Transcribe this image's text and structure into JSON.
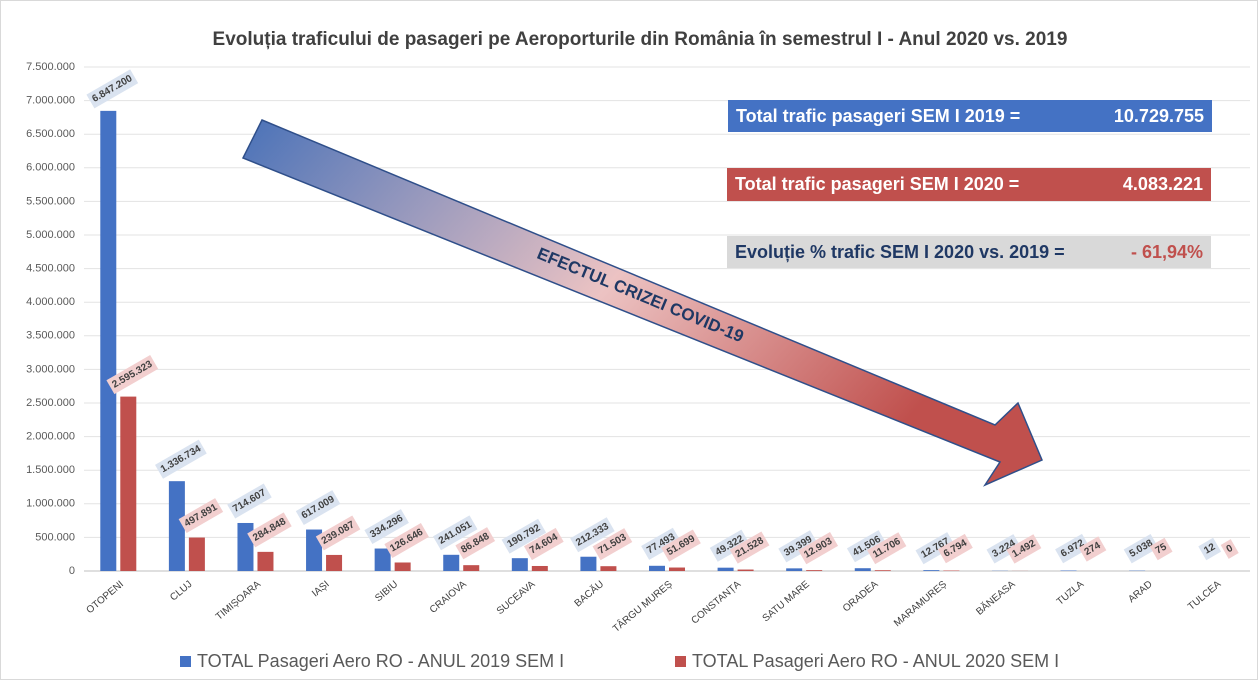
{
  "chart_data": {
    "type": "bar",
    "title": "Evoluția traficului de pasageri pe Aeroporturile din România în semestrul I - Anul 2020 vs. 2019",
    "categories": [
      "OTOPENI",
      "CLUJ",
      "TIMIȘOARA",
      "IAȘI",
      "SIBIU",
      "CRAIOVA",
      "SUCEAVA",
      "BACĂU",
      "TÂRGU MUREȘ",
      "CONSTANȚA",
      "SATU MARE",
      "ORADEA",
      "MARAMUREȘ",
      "BĂNEASA",
      "TUZLA",
      "ARAD",
      "TULCEA"
    ],
    "series": [
      {
        "name": "TOTAL Pasageri Aero RO - ANUL 2019 SEM I",
        "color": "#4472c4",
        "values": [
          6847200,
          1336734,
          714607,
          617009,
          334296,
          241051,
          190792,
          212333,
          77493,
          49322,
          39399,
          41506,
          12767,
          3224,
          6972,
          5038,
          12
        ],
        "value_labels": [
          "6.847.200",
          "1.336.734",
          "714.607",
          "617.009",
          "334.296",
          "241.051",
          "190.792",
          "212.333",
          "77.493",
          "49.322",
          "39.399",
          "41.506",
          "12.767",
          "3.224",
          "6.972",
          "5.038",
          "12"
        ]
      },
      {
        "name": "TOTAL Pasageri Aero RO - ANUL 2020 SEM I",
        "color": "#c0504d",
        "values": [
          2595323,
          497891,
          284848,
          239087,
          126646,
          86848,
          74604,
          71503,
          51699,
          21528,
          12903,
          11706,
          6794,
          1492,
          274,
          75,
          0
        ],
        "value_labels": [
          "2.595.323",
          "497.891",
          "284.848",
          "239.087",
          "126.646",
          "86.848",
          "74.604",
          "71.503",
          "51.699",
          "21.528",
          "12.903",
          "11.706",
          "6.794",
          "1.492",
          "274",
          "75",
          "0"
        ]
      }
    ],
    "ylim": [
      0,
      7500000
    ],
    "yticks": [
      0,
      {
        "value": 500000,
        "label": "500.000"
      },
      {
        "value": 1000000,
        "label": "1.000.000"
      },
      {
        "value": 1500000,
        "label": "1.500.000"
      },
      {
        "value": 2000000,
        "label": "2.000.000"
      },
      {
        "value": 2500000,
        "label": "2.500.000"
      },
      {
        "value": 3000000,
        "label": "3.000.000"
      },
      {
        "value": 3500000,
        "label": "3.500.000"
      },
      {
        "value": 4000000,
        "label": "4.000.000"
      },
      {
        "value": 4500000,
        "label": "4.500.000"
      },
      {
        "value": 5000000,
        "label": "5.000.000"
      },
      {
        "value": 5500000,
        "label": "5.500.000"
      },
      {
        "value": 6000000,
        "label": "6.000.000"
      },
      {
        "value": 6500000,
        "label": "6.500.000"
      },
      {
        "value": 7000000,
        "label": "7.000.000"
      },
      {
        "value": 7500000,
        "label": "7.500.000"
      }
    ],
    "grid": true,
    "legend": "bottom",
    "annotations": [
      "EFECTUL CRIZEI COVID-19",
      "Total trafic pasageri SEM I 2019 =",
      "10.729.755",
      "Total trafic pasageri SEM I 2020 =",
      "4.083.221",
      "Evoluție % trafic SEM I 2020 vs. 2019 =",
      "- 61,94%"
    ]
  }
}
